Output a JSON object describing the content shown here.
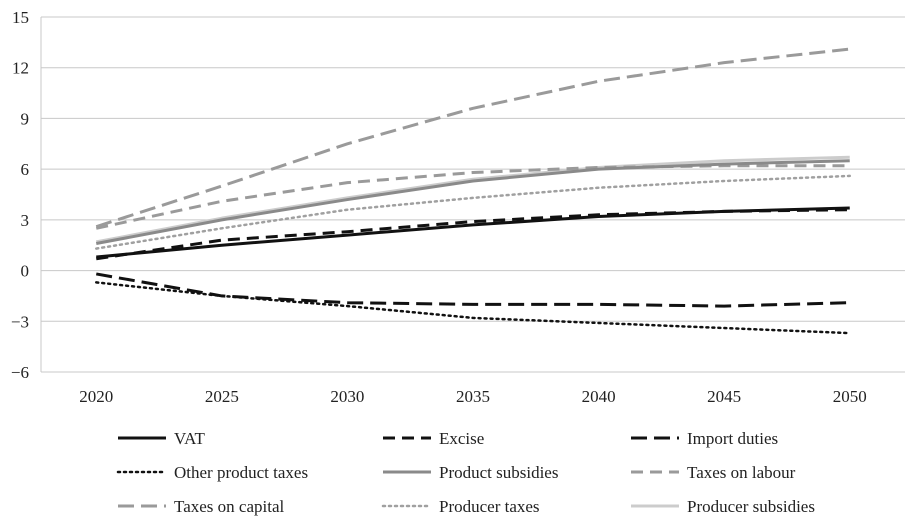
{
  "chart_data": {
    "type": "line",
    "title": "",
    "xlabel": "",
    "ylabel": "",
    "x": [
      2020,
      2025,
      2030,
      2035,
      2040,
      2045,
      2050
    ],
    "x_tick_labels": [
      "2020",
      "2025",
      "2030",
      "2035",
      "2040",
      "2045",
      "2050"
    ],
    "ylim": [
      -6,
      15
    ],
    "y_ticks": [
      -6,
      -3,
      0,
      3,
      6,
      9,
      12,
      15
    ],
    "y_tick_labels": [
      "−6",
      "−3",
      "0",
      "3",
      "6",
      "9",
      "12",
      "15"
    ],
    "grid": "horizontal",
    "legend_position": "bottom",
    "series": [
      {
        "name": "VAT",
        "values": [
          0.8,
          1.5,
          2.1,
          2.7,
          3.2,
          3.5,
          3.7
        ],
        "color": "#111111",
        "style": "solid"
      },
      {
        "name": "Excise",
        "values": [
          0.7,
          1.8,
          2.3,
          2.9,
          3.3,
          3.5,
          3.6
        ],
        "color": "#111111",
        "style": "dashed"
      },
      {
        "name": "Import duties",
        "values": [
          -0.2,
          -1.5,
          -1.9,
          -2.0,
          -2.0,
          -2.1,
          -1.9
        ],
        "color": "#111111",
        "style": "longdash"
      },
      {
        "name": "Other product taxes",
        "values": [
          -0.7,
          -1.5,
          -2.1,
          -2.8,
          -3.1,
          -3.4,
          -3.7
        ],
        "color": "#111111",
        "style": "dotted"
      },
      {
        "name": "Product subsidies",
        "values": [
          1.6,
          3.0,
          4.2,
          5.3,
          6.0,
          6.3,
          6.5
        ],
        "color": "#8a8a8a",
        "style": "solid"
      },
      {
        "name": "Taxes on labour",
        "values": [
          2.5,
          4.1,
          5.2,
          5.8,
          6.1,
          6.2,
          6.2
        ],
        "color": "#9a9a9a",
        "style": "dashed"
      },
      {
        "name": "Taxes on capital",
        "values": [
          2.6,
          5.0,
          7.5,
          9.6,
          11.2,
          12.3,
          13.1
        ],
        "color": "#9a9a9a",
        "style": "longdash"
      },
      {
        "name": "Producer taxes",
        "values": [
          1.3,
          2.5,
          3.6,
          4.3,
          4.9,
          5.3,
          5.6
        ],
        "color": "#a0a0a0",
        "style": "dotted"
      },
      {
        "name": "Producer subsidies",
        "values": [
          1.7,
          3.1,
          4.3,
          5.4,
          6.1,
          6.5,
          6.7
        ],
        "color": "#cccccc",
        "style": "solid"
      }
    ]
  }
}
